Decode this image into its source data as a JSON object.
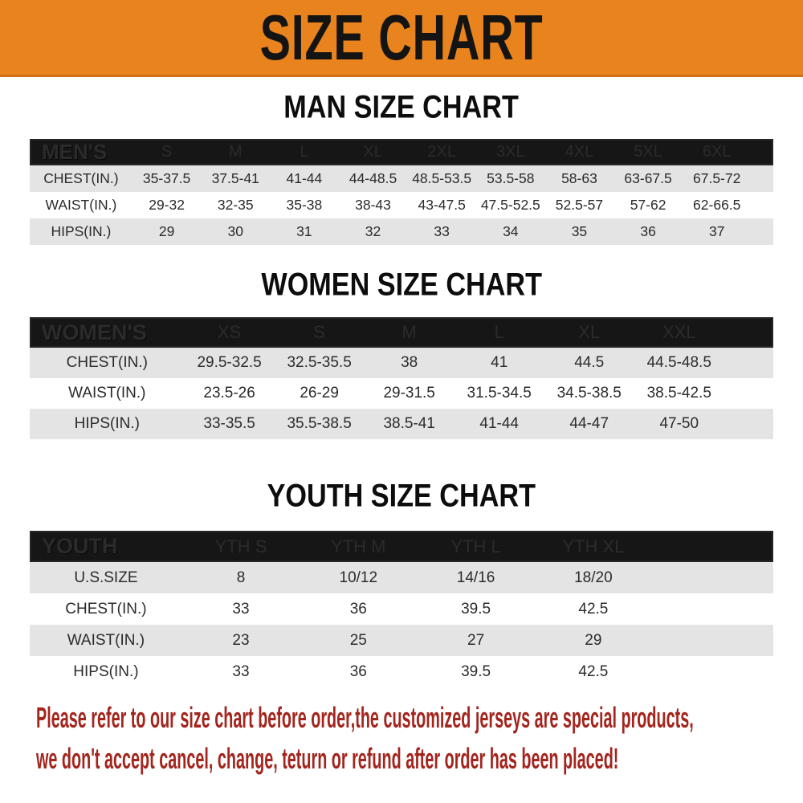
{
  "banner": {
    "title": "SIZE CHART",
    "bg_color": "#E8831D",
    "text_color": "#141414"
  },
  "sections": [
    {
      "id": "men",
      "title": "MAN SIZE CHART",
      "header_label": "MEN'S",
      "columns": [
        "S",
        "M",
        "L",
        "XL",
        "2XL",
        "3XL",
        "4XL",
        "5XL",
        "6XL"
      ],
      "rows": [
        {
          "label": "CHEST(IN.)",
          "values": [
            "35-37.5",
            "37.5-41",
            "41-44",
            "44-48.5",
            "48.5-53.5",
            "53.5-58",
            "58-63",
            "63-67.5",
            "67.5-72"
          ]
        },
        {
          "label": "WAIST(IN.)",
          "values": [
            "29-32",
            "32-35",
            "35-38",
            "38-43",
            "43-47.5",
            "47.5-52.5",
            "52.5-57",
            "57-62",
            "62-66.5"
          ]
        },
        {
          "label": "HIPS(IN.)",
          "values": [
            "29",
            "30",
            "31",
            "32",
            "33",
            "34",
            "35",
            "36",
            "37"
          ]
        }
      ]
    },
    {
      "id": "women",
      "title": "WOMEN SIZE CHART",
      "header_label": "WOMEN'S",
      "columns": [
        "XS",
        "S",
        "M",
        "L",
        "XL",
        "XXL"
      ],
      "rows": [
        {
          "label": "CHEST(IN.)",
          "values": [
            "29.5-32.5",
            "32.5-35.5",
            "38",
            "41",
            "44.5",
            "44.5-48.5"
          ]
        },
        {
          "label": "WAIST(IN.)",
          "values": [
            "23.5-26",
            "26-29",
            "29-31.5",
            "31.5-34.5",
            "34.5-38.5",
            "38.5-42.5"
          ]
        },
        {
          "label": "HIPS(IN.)",
          "values": [
            "33-35.5",
            "35.5-38.5",
            "38.5-41",
            "41-44",
            "44-47",
            "47-50"
          ]
        }
      ]
    },
    {
      "id": "youth",
      "title": "YOUTH SIZE CHART",
      "header_label": "YOUTH",
      "columns": [
        "YTH S",
        "YTH M",
        "YTH L",
        "YTH XL"
      ],
      "rows": [
        {
          "label": "U.S.SIZE",
          "values": [
            "8",
            "10/12",
            "14/16",
            "18/20"
          ]
        },
        {
          "label": "CHEST(IN.)",
          "values": [
            "33",
            "36",
            "39.5",
            "42.5"
          ]
        },
        {
          "label": "WAIST(IN.)",
          "values": [
            "23",
            "25",
            "27",
            "29"
          ]
        },
        {
          "label": "HIPS(IN.)",
          "values": [
            "33",
            "36",
            "39.5",
            "42.5"
          ]
        }
      ]
    }
  ],
  "footer": {
    "line1": "Please refer to our size chart before order,the customized jerseys are special products,",
    "line2": "we don't accept cancel, change, teturn or refund after order has been placed!",
    "text_color": "#A3251E"
  }
}
